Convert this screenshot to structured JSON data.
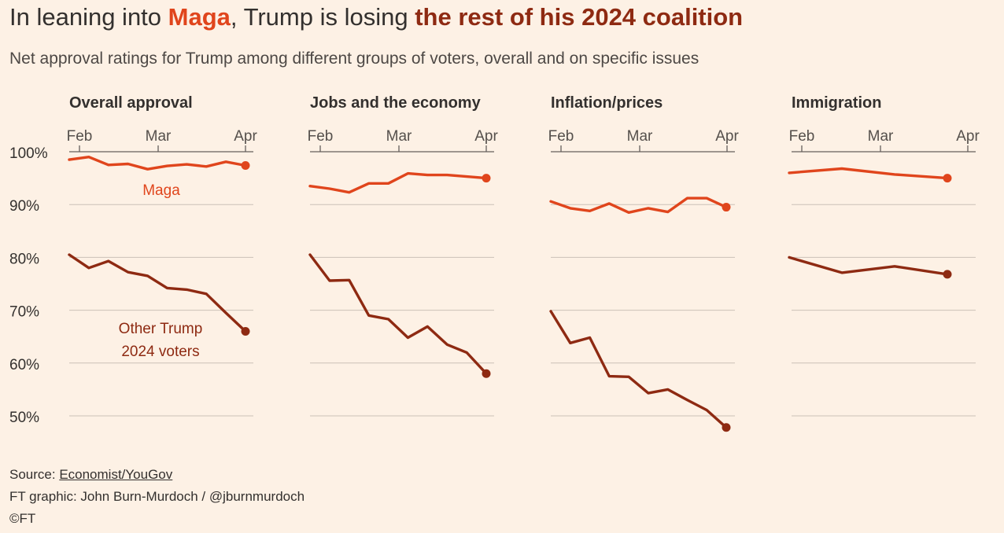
{
  "headline": {
    "part1": "In leaning into ",
    "maga": "Maga",
    "part2": ", Trump is losing ",
    "rest": "the rest of his 2024 coalition"
  },
  "subtitle": "Net approval ratings for Trump among different groups of voters, overall and on specific issues",
  "colors": {
    "maga": "#e0451c",
    "other": "#8e2a12",
    "background": "#fdf1e5",
    "grid": "#ccc1b7",
    "axis": "#66605c",
    "text": "#33302e"
  },
  "chart_data": [
    {
      "type": "line",
      "title": "Overall approval",
      "x_ticks": [
        "Feb",
        "Mar",
        "Apr"
      ],
      "ylim": [
        50,
        100
      ],
      "y_ticks": [
        "100%",
        "90%",
        "80%",
        "70%",
        "60%",
        "50%"
      ],
      "grid": true,
      "series": [
        {
          "name": "Maga",
          "color": "#e0451c",
          "values": [
            98.5,
            99,
            97.5,
            97.7,
            96.7,
            97.3,
            97.6,
            97.2,
            98.1,
            97.4
          ]
        },
        {
          "name": "Other Trump 2024 voters",
          "color": "#8e2a12",
          "values": [
            80.5,
            78,
            79.3,
            77.2,
            76.5,
            74.2,
            73.9,
            73.1,
            69.5,
            66
          ]
        }
      ],
      "annotations": [
        "Maga",
        "Other Trump",
        "2024 voters"
      ]
    },
    {
      "type": "line",
      "title": "Jobs and the economy",
      "x_ticks": [
        "Feb",
        "Mar",
        "Apr"
      ],
      "ylim": [
        50,
        100
      ],
      "grid": true,
      "series": [
        {
          "name": "Maga",
          "color": "#e0451c",
          "values": [
            93.5,
            93,
            92.3,
            94,
            94,
            95.9,
            95.6,
            95.6,
            95.3,
            95
          ]
        },
        {
          "name": "Other Trump 2024 voters",
          "color": "#8e2a12",
          "values": [
            80.5,
            75.6,
            75.7,
            69,
            68.3,
            64.8,
            66.9,
            63.5,
            62,
            58
          ]
        }
      ]
    },
    {
      "type": "line",
      "title": "Inflation/prices",
      "x_ticks": [
        "Feb",
        "Mar",
        "Apr"
      ],
      "ylim": [
        50,
        100
      ],
      "grid": true,
      "series": [
        {
          "name": "Maga",
          "color": "#e0451c",
          "values": [
            90.6,
            89.3,
            88.8,
            90.2,
            88.5,
            89.3,
            88.6,
            91.2,
            91.2,
            89.5
          ]
        },
        {
          "name": "Other Trump 2024 voters",
          "color": "#8e2a12",
          "values": [
            69.8,
            63.8,
            64.8,
            57.5,
            57.4,
            54.3,
            55,
            53,
            51.1,
            47.8
          ]
        }
      ]
    },
    {
      "type": "line",
      "title": "Immigration",
      "x_ticks": [
        "Feb",
        "Mar",
        "Apr"
      ],
      "ylim": [
        50,
        100
      ],
      "grid": true,
      "series": [
        {
          "name": "Maga",
          "color": "#e0451c",
          "values": [
            96,
            96.8,
            95.7,
            95
          ]
        },
        {
          "name": "Other Trump 2024 voters",
          "color": "#8e2a12",
          "values": [
            80,
            77.1,
            78.3,
            76.8
          ]
        }
      ]
    }
  ],
  "footer": {
    "source_label": "Source: ",
    "source_link": "Economist/YouGov",
    "credit": "FT graphic: John Burn-Murdoch / @jburnmurdoch",
    "copyright": "©FT"
  }
}
